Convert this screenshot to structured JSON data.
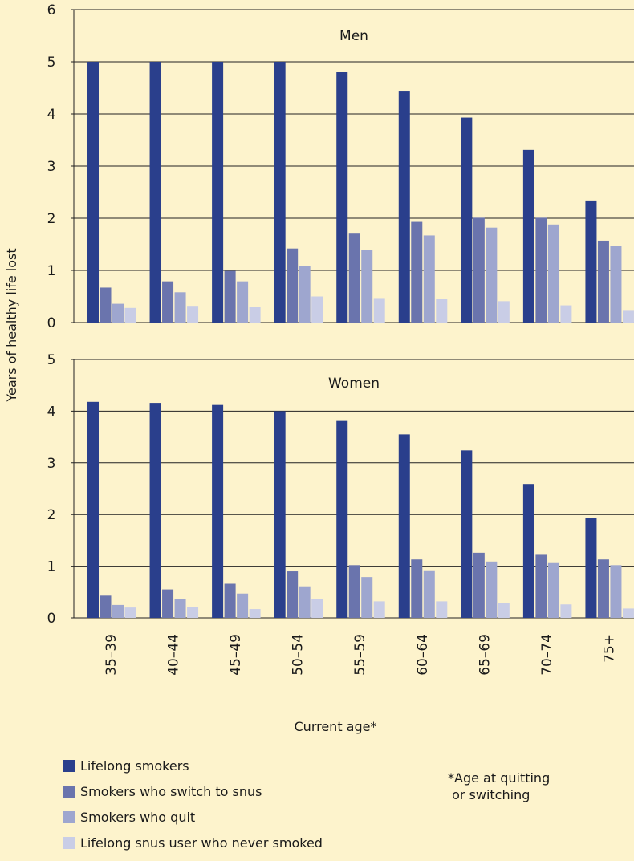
{
  "chart_data": {
    "type": "bar",
    "ylabel": "Years of healthy life lost",
    "xlabel": "Current age*",
    "categories": [
      "35–39",
      "40–44",
      "45–49",
      "50–54",
      "55–59",
      "60–64",
      "65–69",
      "70–74",
      "75+"
    ],
    "grid": true,
    "legend_placement": "bottom-left",
    "footnote": [
      "*Age at quitting",
      " or switching"
    ],
    "series_legend": [
      {
        "name": "Lifelong smokers",
        "color": "#2a3f8c"
      },
      {
        "name": "Smokers who switch to snus",
        "color": "#6a74ad"
      },
      {
        "name": "Smokers who quit",
        "color": "#9ea6cf"
      },
      {
        "name": "Lifelong snus user who never smoked",
        "color": "#c9cde6"
      }
    ],
    "panels": [
      {
        "title": "Men",
        "ylim": [
          0,
          6
        ],
        "yticks": [
          0,
          1,
          2,
          3,
          4,
          5,
          6
        ],
        "series": [
          {
            "name": "Lifelong smokers",
            "values": [
              5.0,
              5.0,
              5.0,
              5.0,
              4.8,
              4.43,
              3.93,
              3.31,
              2.34
            ]
          },
          {
            "name": "Smokers who switch to snus",
            "values": [
              0.67,
              0.79,
              0.99,
              1.42,
              1.72,
              1.93,
              2.01,
              2.01,
              1.57
            ]
          },
          {
            "name": "Smokers who quit",
            "values": [
              0.36,
              0.58,
              0.79,
              1.08,
              1.4,
              1.67,
              1.82,
              1.88,
              1.47
            ]
          },
          {
            "name": "Lifelong snus user who never smoked",
            "values": [
              0.28,
              0.32,
              0.3,
              0.5,
              0.47,
              0.45,
              0.41,
              0.33,
              0.24
            ]
          }
        ]
      },
      {
        "title": "Women",
        "ylim": [
          0,
          5
        ],
        "yticks": [
          0,
          1,
          2,
          3,
          4,
          5
        ],
        "series": [
          {
            "name": "Lifelong smokers",
            "values": [
              4.18,
              4.16,
              4.12,
              4.0,
              3.81,
              3.55,
              3.24,
              2.59,
              1.94
            ]
          },
          {
            "name": "Smokers who switch to snus",
            "values": [
              0.43,
              0.55,
              0.66,
              0.9,
              1.02,
              1.13,
              1.26,
              1.22,
              1.13
            ]
          },
          {
            "name": "Smokers who quit",
            "values": [
              0.25,
              0.36,
              0.47,
              0.61,
              0.79,
              0.92,
              1.09,
              1.06,
              1.02
            ]
          },
          {
            "name": "Lifelong snus user who never smoked",
            "values": [
              0.2,
              0.21,
              0.17,
              0.36,
              0.32,
              0.32,
              0.29,
              0.26,
              0.18
            ]
          }
        ]
      }
    ]
  }
}
